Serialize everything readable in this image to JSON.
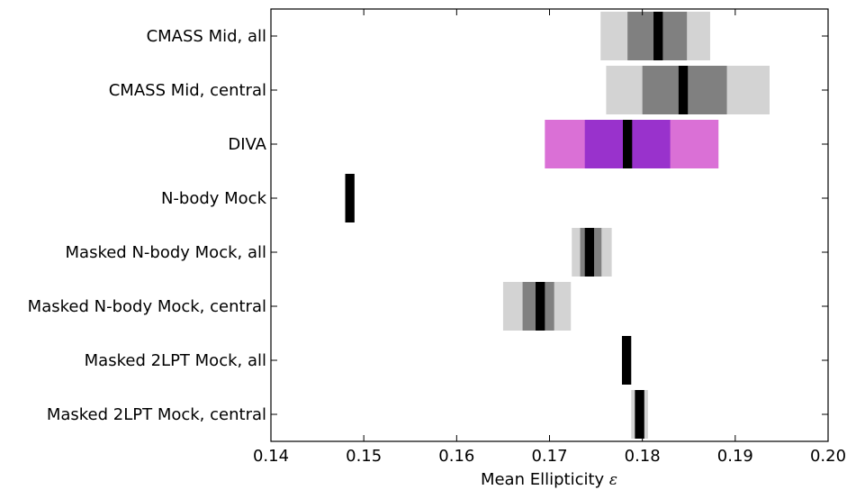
{
  "chart_data": {
    "type": "interval",
    "xlabel": "Mean Ellipticity ",
    "xlabel_symbol": "ε",
    "xlim": [
      0.14,
      0.2
    ],
    "xticks": [
      0.14,
      0.15,
      0.16,
      0.17,
      0.18,
      0.19,
      0.2
    ],
    "xtick_labels": [
      "0.14",
      "0.15",
      "0.16",
      "0.17",
      "0.18",
      "0.19",
      "0.20"
    ],
    "grid": false,
    "bands": [
      "outer",
      "inner",
      "center"
    ],
    "rows": [
      {
        "label": "CMASS Mid, all",
        "outer": [
          0.1755,
          0.1873
        ],
        "inner": [
          0.1784,
          0.1848
        ],
        "center": [
          0.1812,
          0.1822
        ],
        "palette": "gray"
      },
      {
        "label": "CMASS Mid, central",
        "outer": [
          0.1761,
          0.1937
        ],
        "inner": [
          0.18,
          0.1891
        ],
        "center": [
          0.1839,
          0.1849
        ],
        "palette": "gray"
      },
      {
        "label": "DIVA",
        "outer": [
          0.1695,
          0.1882
        ],
        "inner": [
          0.1738,
          0.183
        ],
        "center": [
          0.1779,
          0.1789
        ],
        "palette": "purple"
      },
      {
        "label": "N-body Mock",
        "outer": null,
        "inner": null,
        "center": [
          0.148,
          0.149
        ],
        "palette": "gray"
      },
      {
        "label": "Masked N-body Mock, all",
        "outer": [
          0.1724,
          0.1767
        ],
        "inner": [
          0.1733,
          0.1756
        ],
        "center": [
          0.1738,
          0.1748
        ],
        "palette": "gray"
      },
      {
        "label": "Masked N-body Mock, central",
        "outer": [
          0.165,
          0.1723
        ],
        "inner": [
          0.1671,
          0.1705
        ],
        "center": [
          0.1685,
          0.1695
        ],
        "palette": "gray"
      },
      {
        "label": "Masked 2LPT Mock, all",
        "outer": null,
        "inner": null,
        "center": [
          0.1778,
          0.1788
        ],
        "palette": "gray"
      },
      {
        "label": "Masked 2LPT Mock, central",
        "outer": [
          0.1788,
          0.1806
        ],
        "inner": [
          0.1792,
          0.1802
        ],
        "center": [
          0.1792,
          0.1802
        ],
        "palette": "gray"
      }
    ],
    "colors": {
      "gray": {
        "outer": "#d3d3d3",
        "inner": "#808080",
        "center": "#000000"
      },
      "purple": {
        "outer": "#da70d6",
        "inner": "#9932cc",
        "center": "#000000"
      },
      "axis": "#000000",
      "background": "#ffffff"
    }
  }
}
